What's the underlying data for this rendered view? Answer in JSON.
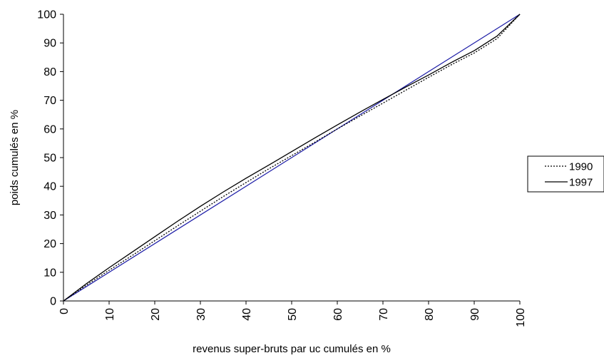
{
  "chart_data": {
    "type": "line",
    "title": "",
    "xlabel": "revenus super-bruts par uc cumulés en %",
    "ylabel": "poids cumulés en %",
    "xlim": [
      0,
      100
    ],
    "ylim": [
      0,
      100
    ],
    "x_ticks": [
      "0",
      "10",
      "20",
      "30",
      "40",
      "50",
      "60",
      "70",
      "80",
      "90",
      "100"
    ],
    "y_ticks": [
      "0",
      "10",
      "20",
      "30",
      "40",
      "50",
      "60",
      "70",
      "80",
      "90",
      "100"
    ],
    "grid": false,
    "legend_position": "right",
    "reference_line": {
      "color": "#1a1aa6",
      "x": [
        0,
        100
      ],
      "y": [
        0,
        100
      ]
    },
    "series": [
      {
        "name": "1990",
        "style": "dotted",
        "color": "#000000",
        "x": [
          0,
          5,
          10,
          15,
          20,
          25,
          30,
          35,
          40,
          45,
          50,
          55,
          60,
          65,
          70,
          75,
          80,
          85,
          90,
          95,
          100
        ],
        "y": [
          0,
          5.5,
          10.7,
          15.8,
          21.0,
          26.2,
          31.3,
          36.4,
          41.3,
          46.1,
          50.7,
          55.3,
          60.0,
          64.5,
          69.0,
          73.5,
          78.0,
          82.4,
          86.5,
          91.5,
          100
        ]
      },
      {
        "name": "1997",
        "style": "solid",
        "color": "#000000",
        "x": [
          0,
          5,
          10,
          15,
          20,
          25,
          30,
          35,
          40,
          45,
          50,
          55,
          60,
          65,
          70,
          75,
          80,
          85,
          90,
          95,
          100
        ],
        "y": [
          0,
          6.0,
          11.6,
          17.0,
          22.4,
          27.8,
          33.0,
          38.0,
          42.8,
          47.4,
          52.1,
          56.8,
          61.4,
          65.9,
          70.3,
          74.6,
          78.8,
          83.2,
          87.3,
          92.4,
          100
        ]
      }
    ]
  }
}
